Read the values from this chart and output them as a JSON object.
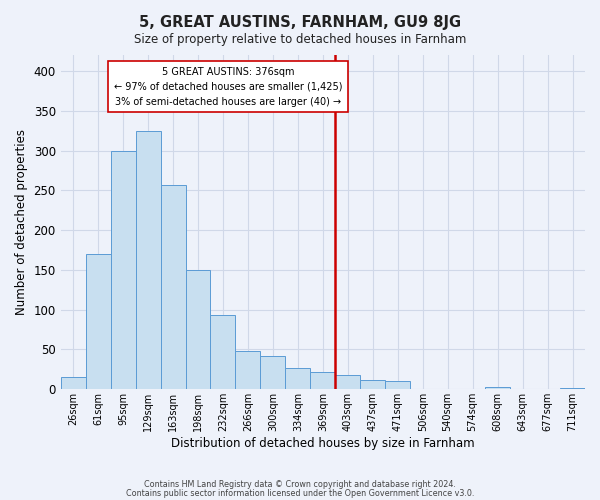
{
  "title": "5, GREAT AUSTINS, FARNHAM, GU9 8JG",
  "subtitle": "Size of property relative to detached houses in Farnham",
  "xlabel": "Distribution of detached houses by size in Farnham",
  "ylabel": "Number of detached properties",
  "bar_labels": [
    "26sqm",
    "61sqm",
    "95sqm",
    "129sqm",
    "163sqm",
    "198sqm",
    "232sqm",
    "266sqm",
    "300sqm",
    "334sqm",
    "369sqm",
    "403sqm",
    "437sqm",
    "471sqm",
    "506sqm",
    "540sqm",
    "574sqm",
    "608sqm",
    "643sqm",
    "677sqm",
    "711sqm"
  ],
  "bar_values": [
    15,
    170,
    300,
    325,
    257,
    150,
    93,
    48,
    42,
    27,
    22,
    18,
    12,
    10,
    0,
    0,
    0,
    3,
    0,
    0,
    2
  ],
  "bar_color": "#c8dff0",
  "bar_edge_color": "#5b9bd5",
  "vline_x_index": 10.5,
  "vline_color": "#cc0000",
  "annotation_line1": "5 GREAT AUSTINS: 376sqm",
  "annotation_line2": "← 97% of detached houses are smaller (1,425)",
  "annotation_line3": "3% of semi-detached houses are larger (40) →",
  "annotation_box_color": "#ffffff",
  "annotation_box_edge": "#cc0000",
  "ylim": [
    0,
    420
  ],
  "yticks": [
    0,
    50,
    100,
    150,
    200,
    250,
    300,
    350,
    400
  ],
  "footer1": "Contains HM Land Registry data © Crown copyright and database right 2024.",
  "footer2": "Contains public sector information licensed under the Open Government Licence v3.0.",
  "background_color": "#eef2fa",
  "grid_color": "#d0d8e8"
}
